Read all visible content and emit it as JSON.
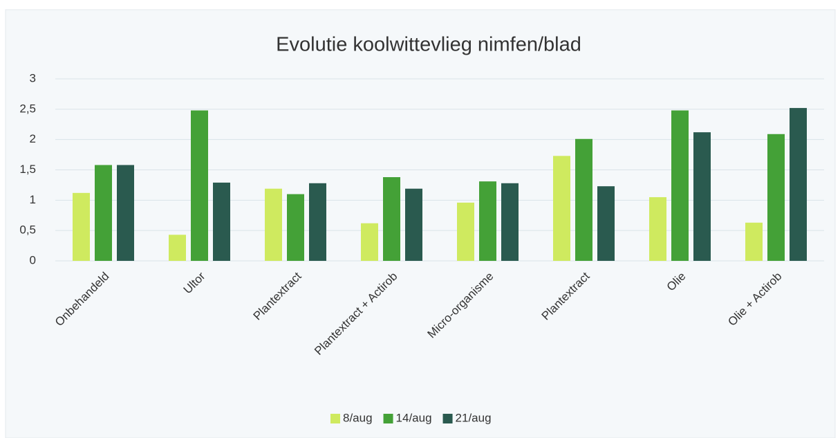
{
  "chart_data": {
    "type": "bar",
    "title": "Evolutie koolwittevlieg nimfen/blad",
    "categories": [
      "Onbehandeld",
      "Ultor",
      "Plantextract",
      "Plantextract + Actirob",
      "Micro-organisme",
      "Plantextract",
      "Olie",
      "Olie + Actirob"
    ],
    "series": [
      {
        "name": "8/aug",
        "color": "#cfea5f",
        "values": [
          1.12,
          0.43,
          1.19,
          0.62,
          0.96,
          1.73,
          1.05,
          0.63
        ]
      },
      {
        "name": "14/aug",
        "color": "#44a137",
        "values": [
          1.58,
          2.48,
          1.1,
          1.38,
          1.31,
          2.01,
          2.48,
          2.09
        ]
      },
      {
        "name": "21/aug",
        "color": "#2a5a4f",
        "values": [
          1.58,
          1.29,
          1.28,
          1.19,
          1.28,
          1.23,
          2.12,
          2.52
        ]
      }
    ],
    "ylim": [
      0,
      3
    ],
    "yticks": [
      0,
      {
        "value": 0.5,
        "label": "0,5"
      },
      1,
      {
        "value": 1.5,
        "label": "1,5"
      },
      2,
      {
        "value": 2.5,
        "label": "2,5"
      },
      3
    ],
    "grid": true
  }
}
